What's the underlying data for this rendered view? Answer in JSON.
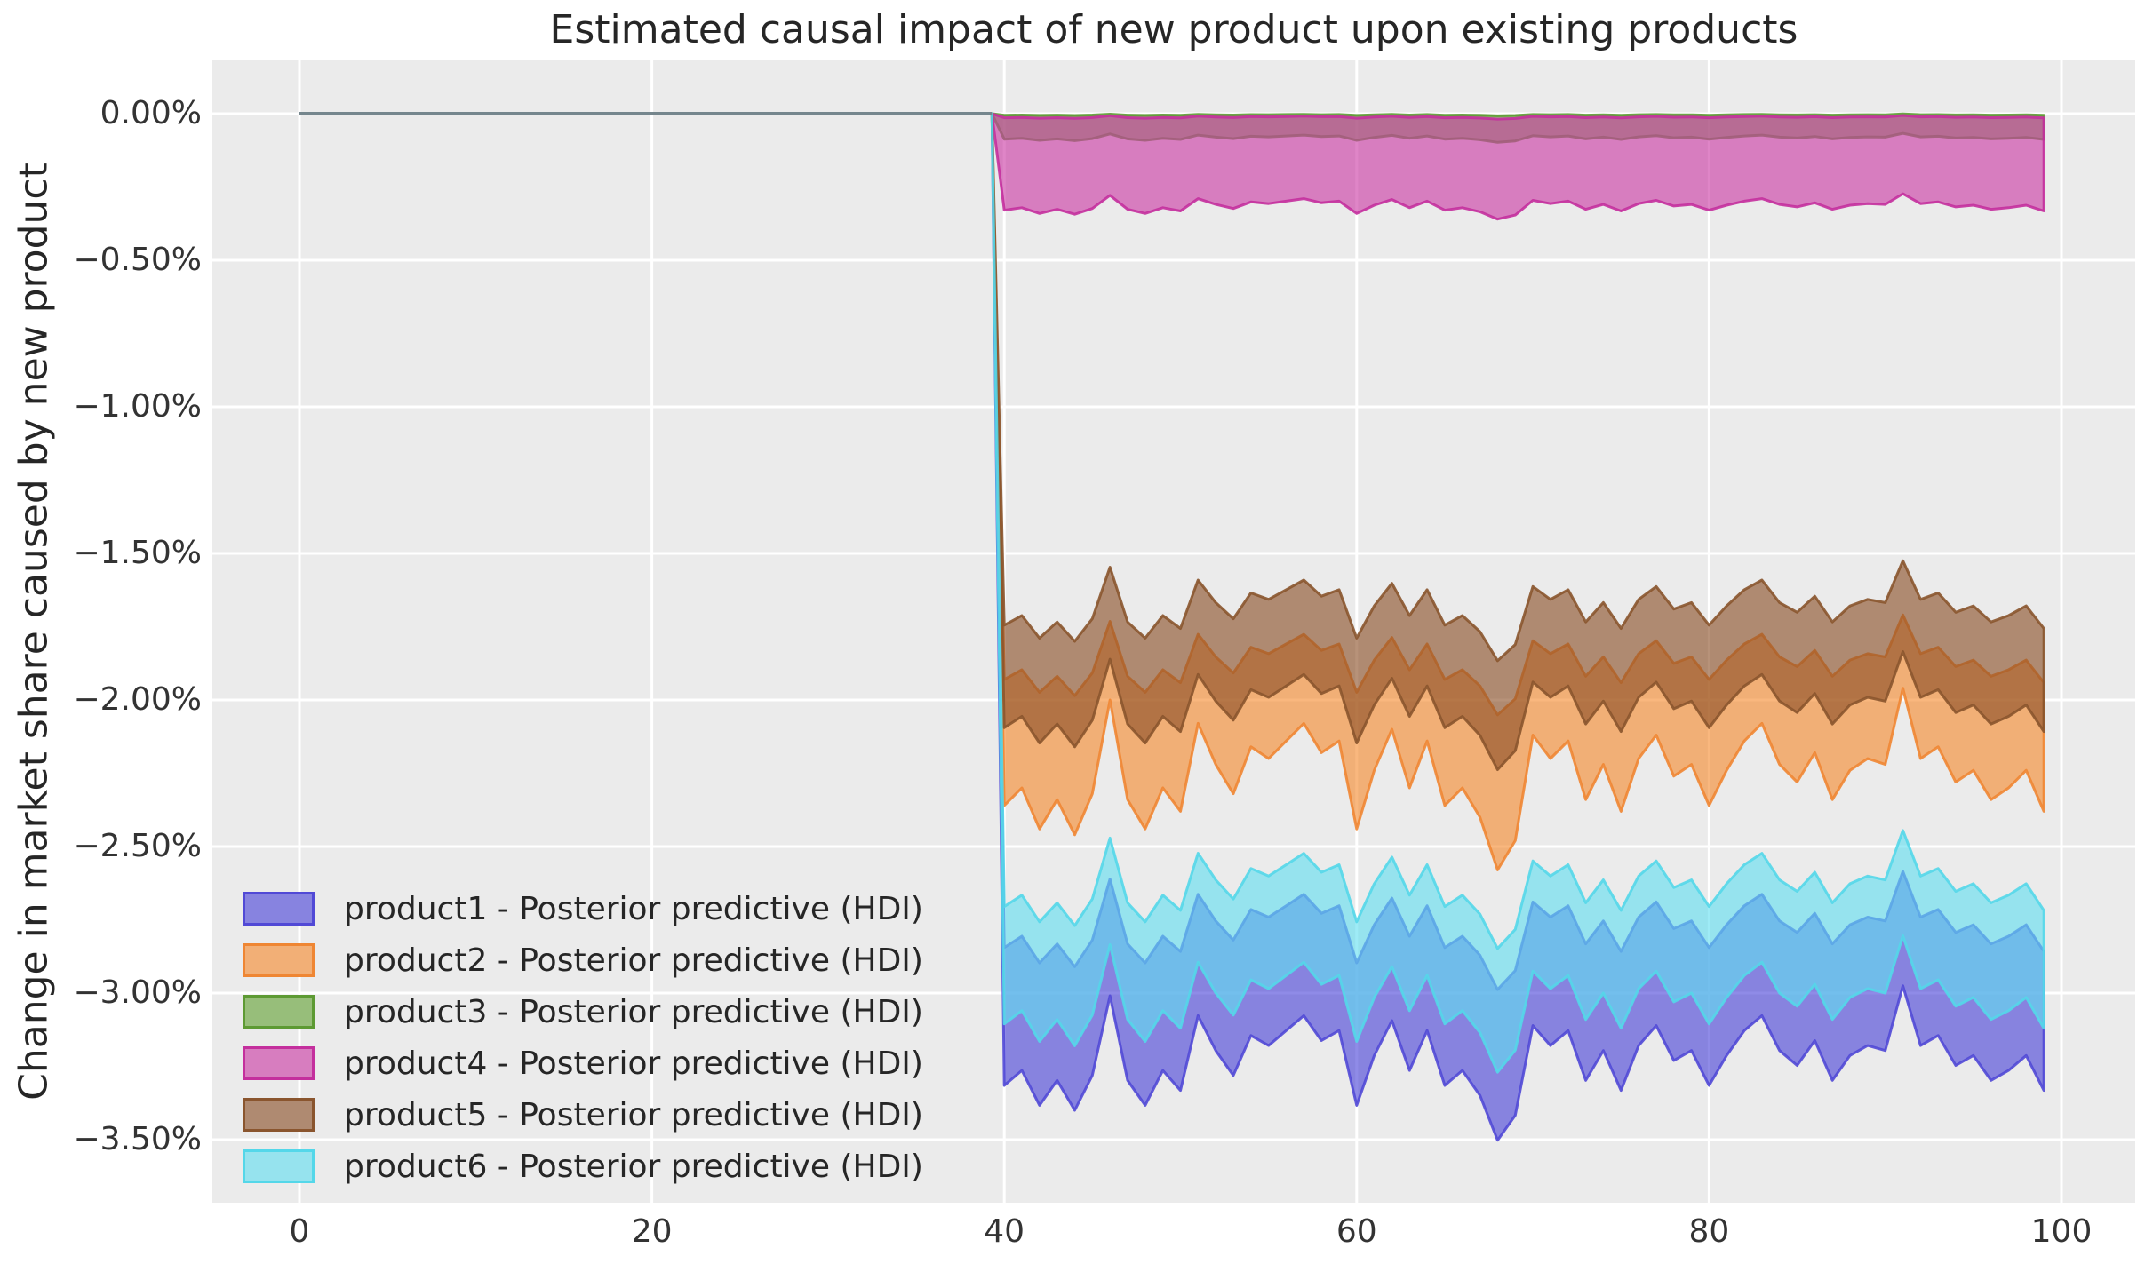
{
  "figure": {
    "title": "Estimated causal impact of new product upon existing products",
    "y_axis_label": "Change in market share caused by new product"
  },
  "colors": {
    "figure_background": "#ffffff",
    "plot_background": "#ebebeb",
    "gridline": "#ffffff",
    "title_text": "#262626",
    "tick_text": "#333333",
    "pre_period_line": "#75868d"
  },
  "chart_data": {
    "type": "area",
    "title": "Estimated causal impact of new product upon existing products",
    "ylabel": "Change in market share caused by new product",
    "xlabel": "",
    "grid": true,
    "x_ticks": {
      "values": [
        0,
        20,
        40,
        60,
        80,
        100
      ],
      "labels": [
        "0",
        "20",
        "40",
        "60",
        "80",
        "100"
      ]
    },
    "y_ticks": {
      "values": [
        0,
        -0.5,
        -1.0,
        -1.5,
        -2.0,
        -2.5,
        -3.0,
        -3.5
      ],
      "labels": [
        "0.00%",
        "−0.50%",
        "−1.00%",
        "−1.50%",
        "−2.00%",
        "−2.50%",
        "−3.00%",
        "−3.50%"
      ]
    },
    "y_unit": "percent",
    "xlim": [
      -5,
      104
    ],
    "ylim": [
      -3.72,
      0.18
    ],
    "pre_period": {
      "x_start": 0,
      "x_end": 39.3,
      "value_pct": 0
    },
    "post_period": {
      "x_start": 40,
      "x_end": 99,
      "x_step": 1
    },
    "shared_wiggle": [
      -0.5,
      -0.2,
      -0.9,
      -0.4,
      -1.0,
      -0.3,
      1.3,
      -0.4,
      -0.9,
      -0.2,
      -0.6,
      0.9,
      0.2,
      -0.3,
      0.5,
      0.3,
      0.6,
      0.9,
      0.4,
      0.6,
      -0.9,
      0.1,
      0.8,
      -0.2,
      0.6,
      -0.5,
      -0.2,
      -0.7,
      -1.6,
      -1.1,
      0.7,
      0.3,
      0.6,
      -0.4,
      0.2,
      -0.6,
      0.3,
      0.7,
      0.0,
      0.2,
      -0.5,
      0.1,
      0.6,
      0.9,
      0.2,
      -0.1,
      0.4,
      -0.4,
      0.1,
      0.3,
      0.2,
      1.5,
      0.3,
      0.5,
      -0.1,
      0.1,
      -0.4,
      -0.2,
      0.1,
      -0.6
    ],
    "fill_alpha": 0.62,
    "series": [
      {
        "name": "product1",
        "label": "product1 - Posterior predictive (HDI)",
        "fill": "#4a43d9",
        "edge": "#5149d6",
        "hdi_upper_mean_pct": -2.78,
        "upper_amp": 0.13,
        "hdi_lower_mean_pct": -3.23,
        "lower_amp": 0.17
      },
      {
        "name": "product2",
        "label": "product2 - Posterior predictive (HDI)",
        "fill": "#f68a2e",
        "edge": "#ef8633",
        "hdi_upper_mean_pct": -1.875,
        "upper_amp": 0.11,
        "hdi_lower_mean_pct": -2.26,
        "lower_amp": 0.2
      },
      {
        "name": "product3",
        "label": "product3 - Posterior predictive (HDI)",
        "fill": "#61a234",
        "edge": "#5d9a33",
        "hdi_upper_mean_pct": -0.004,
        "upper_amp": 0.002,
        "hdi_lower_mean_pct": -0.082,
        "lower_amp": 0.01
      },
      {
        "name": "product4",
        "label": "product4 - Posterior predictive (HDI)",
        "fill": "#cb3aa5",
        "edge": "#c42f9d",
        "hdi_upper_mean_pct": -0.012,
        "upper_amp": 0.004,
        "hdi_lower_mean_pct": -0.315,
        "lower_amp": 0.028
      },
      {
        "name": "product5",
        "label": "product5 - Posterior predictive (HDI)",
        "fill": "#8a4f26",
        "edge": "#8a552e",
        "hdi_upper_mean_pct": -1.69,
        "upper_amp": 0.11,
        "hdi_lower_mean_pct": -2.03,
        "lower_amp": 0.13
      },
      {
        "name": "product6",
        "label": "product6 - Posterior predictive (HDI)",
        "fill": "#62dff0",
        "edge": "#54d7e9",
        "hdi_upper_mean_pct": -2.64,
        "upper_amp": 0.13,
        "hdi_lower_mean_pct": -3.03,
        "lower_amp": 0.15
      }
    ]
  },
  "legend": {
    "items": [
      {
        "label": "product1 - Posterior predictive (HDI)",
        "swatch_fill": "#8783e0",
        "swatch_edge": "#5149d6"
      },
      {
        "label": "product2 - Posterior predictive (HDI)",
        "swatch_fill": "#f2af76",
        "swatch_edge": "#ef8633"
      },
      {
        "label": "product3 - Posterior predictive (HDI)",
        "swatch_fill": "#97be7a",
        "swatch_edge": "#5d9a33"
      },
      {
        "label": "product4 - Posterior predictive (HDI)",
        "swatch_fill": "#d77dbf",
        "swatch_edge": "#c42f9d"
      },
      {
        "label": "product5 - Posterior predictive (HDI)",
        "swatch_fill": "#af8a71",
        "swatch_edge": "#8a552e"
      },
      {
        "label": "product6 - Posterior predictive (HDI)",
        "swatch_fill": "#96e3ee",
        "swatch_edge": "#54d7e9"
      }
    ]
  }
}
